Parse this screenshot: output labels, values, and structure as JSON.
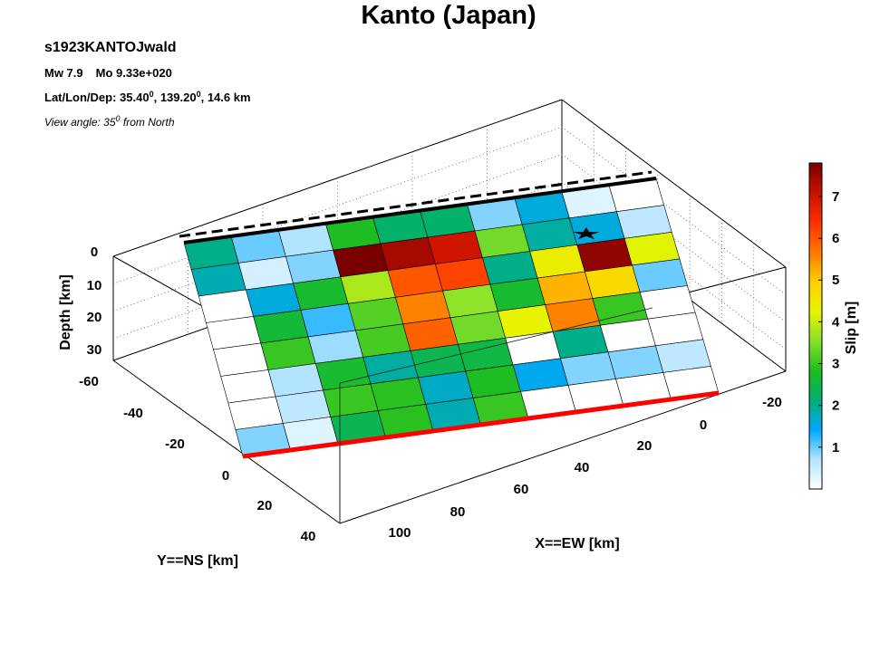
{
  "header": {
    "title": "Kanto (Japan)",
    "model": "s1923KANTOJwald",
    "mw": "Mw 7.9",
    "mo": "Mo 9.33e+020",
    "location_prefix": "Lat/Lon/Dep: 35.40",
    "location_mid": ", 139.20",
    "location_suffix": ", 14.6 km",
    "degree_mark": "0",
    "view_prefix": "View angle:  35",
    "view_suffix": " from North"
  },
  "chart_data": {
    "type": "heatmap",
    "title": "Kanto (Japan)",
    "xlabel": "X==EW [km]",
    "ylabel": "Y==NS [km]",
    "zlabel": "Depth [km]",
    "colorbar_label": "Slip [m]",
    "x_ticks": [
      "-20",
      "0",
      "20",
      "40",
      "60",
      "80",
      "100"
    ],
    "y_ticks": [
      "-60",
      "-40",
      "-20",
      "0",
      "20",
      "40"
    ],
    "z_ticks": [
      "0",
      "10",
      "20",
      "30"
    ],
    "colorbar_ticks": [
      "1",
      "2",
      "3",
      "4",
      "5",
      "6",
      "7"
    ],
    "colorbar_range": [
      0,
      7.8
    ],
    "rows_down_dip": 8,
    "cols_along_strike": 10,
    "slip_m": [
      [
        2.0,
        1.0,
        0.7,
        2.8,
        2.2,
        2.2,
        0.9,
        1.6,
        0.3,
        0.0
      ],
      [
        1.8,
        0.4,
        0.9,
        7.8,
        7.4,
        7.0,
        3.4,
        1.9,
        1.6,
        0.6
      ],
      [
        0.0,
        1.6,
        2.7,
        3.8,
        6.0,
        6.2,
        2.0,
        4.4,
        7.6,
        4.2
      ],
      [
        0.0,
        2.6,
        1.2,
        3.2,
        5.6,
        3.6,
        2.7,
        5.2,
        4.8,
        1.0
      ],
      [
        0.0,
        3.0,
        0.8,
        3.1,
        5.9,
        3.4,
        4.3,
        5.6,
        3.0,
        0.0
      ],
      [
        0.0,
        0.7,
        2.7,
        1.9,
        2.4,
        2.5,
        0.0,
        2.0,
        0.0,
        0.0
      ],
      [
        0.0,
        0.6,
        3.0,
        2.9,
        1.7,
        2.8,
        1.5,
        0.9,
        0.9,
        0.6
      ],
      [
        0.9,
        0.3,
        2.4,
        2.9,
        1.8,
        3.0,
        0.0,
        0.0,
        0.0,
        0.0
      ]
    ],
    "hypocenter": {
      "row": 1,
      "col": 8
    },
    "grid": true
  },
  "colors": {
    "colormap": [
      "#ffffff",
      "#b2e4ff",
      "#00a8ff",
      "#00b070",
      "#1fbe1f",
      "#88e12b",
      "#e6f500",
      "#ffd000",
      "#ff7800",
      "#ff3000",
      "#c81000",
      "#7a0000"
    ],
    "fault_top": "#000000",
    "fault_bottom": "#ff0000",
    "box": "#000000"
  }
}
